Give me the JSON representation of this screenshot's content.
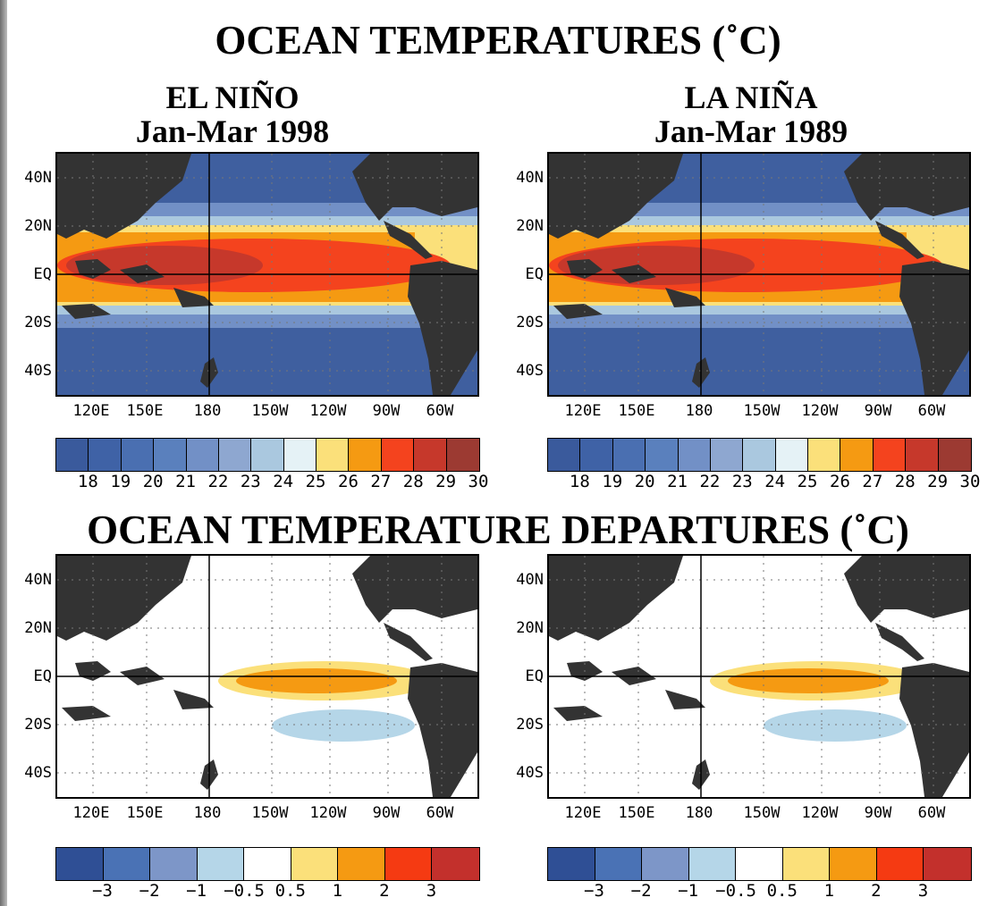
{
  "title_top": "OCEAN TEMPERATURES (˚C)",
  "title_bottom": "OCEAN TEMPERATURE DEPARTURES (˚C)",
  "panels": {
    "el_nino": {
      "name": "EL NIÑO",
      "period": "Jan-Mar 1998"
    },
    "la_nina": {
      "name": "LA NIÑA",
      "period": "Jan-Mar 1989"
    }
  },
  "axes": {
    "lat_labels": [
      "40N",
      "20N",
      "EQ",
      "20S",
      "40S"
    ],
    "lon_labels": [
      "120E",
      "150E",
      "180",
      "150W",
      "120W",
      "90W",
      "60W"
    ]
  },
  "temp_scale": {
    "colors": [
      "#3a5a9c",
      "#3f62a6",
      "#4a6fb1",
      "#5a80bd",
      "#7290c6",
      "#8ea7d0",
      "#aac8df",
      "#e5f2f6",
      "#fbe07a",
      "#f59a12",
      "#f4431e",
      "#c6382b",
      "#9c3a32"
    ],
    "labels": [
      "18",
      "19",
      "20",
      "21",
      "22",
      "23",
      "24",
      "25",
      "26",
      "27",
      "28",
      "29",
      "30"
    ]
  },
  "anom_scale": {
    "colors": [
      "#2f4f95",
      "#4a72b5",
      "#7d96c8",
      "#b5d6e8",
      "#ffffff",
      "#fbe07a",
      "#f59a12",
      "#f53a12",
      "#c3302c"
    ],
    "labels": [
      "−3",
      "−2",
      "−1",
      "−0.5",
      "0.5",
      "1",
      "2",
      "3"
    ]
  }
}
